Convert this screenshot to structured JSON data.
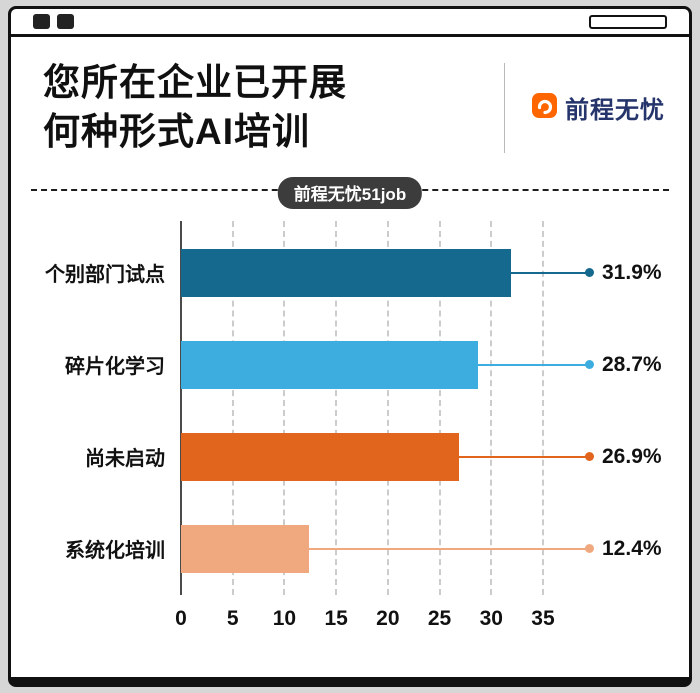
{
  "header": {
    "title_line1": "您所在企业已开展",
    "title_line2": "何种形式AI培训",
    "brand": "前程无忧",
    "badge": "前程无忧51job"
  },
  "colors": {
    "page_background": "#d6d6d6",
    "card_background": "#ffffff",
    "border": "#111111",
    "badge_background": "#3c3c3c",
    "logo_orange": "#ff6600",
    "logo_navy": "#25356b"
  },
  "chart_data": {
    "type": "bar",
    "orientation": "horizontal",
    "title": "您所在企业已开展何种形式AI培训",
    "categories": [
      "个别部门试点",
      "碎片化学习",
      "尚未启动",
      "系统化培训"
    ],
    "values": [
      31.9,
      28.7,
      26.9,
      12.4
    ],
    "labels": [
      "31.9%",
      "28.7%",
      "26.9%",
      "12.4%"
    ],
    "bar_colors": [
      "#15688e",
      "#3cadde",
      "#e2651d",
      "#f0a97e"
    ],
    "xticks": [
      0,
      5,
      10,
      15,
      20,
      25,
      30,
      35
    ],
    "xlim": [
      0,
      38
    ],
    "grid": "dashed-vertical",
    "xlabel": "",
    "ylabel": ""
  }
}
